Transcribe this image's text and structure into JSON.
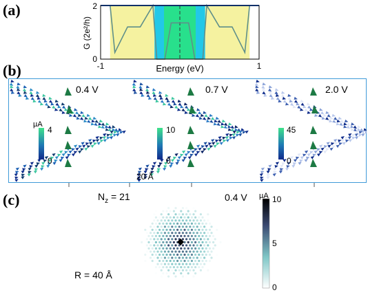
{
  "panel_labels": [
    "(a)",
    "(b)",
    "(c)"
  ],
  "colors": {
    "yellow_band": "#f5f2a0",
    "cyan_band": "#22c8e8",
    "green_band": "#28e08c",
    "curve": "#5f8f8a",
    "top_line": "#1f5fd0",
    "arrow_green": "#1d7a44",
    "panel_border": "#3f9ad8"
  },
  "chart_data": [
    {
      "type": "line",
      "panel": "(a)",
      "xlabel": "Energy (eV)",
      "ylabel": "G (2e²/h)",
      "xlim": [
        -1,
        1
      ],
      "ylim": [
        0,
        2
      ],
      "xtick_labels": [
        "-1",
        "1"
      ],
      "ytick_labels": [
        "0",
        "2"
      ],
      "bands": [
        {
          "from": -0.88,
          "to": -0.32,
          "color": "yellow"
        },
        {
          "from": -0.32,
          "to": -0.2,
          "color": "cyan"
        },
        {
          "from": -0.2,
          "to": 0.2,
          "color": "green"
        },
        {
          "from": 0.2,
          "to": 0.32,
          "color": "cyan"
        },
        {
          "from": 0.32,
          "to": 0.88,
          "color": "yellow"
        }
      ],
      "series": [
        {
          "x": [
            -1,
            -0.88,
            -0.82,
            -0.66,
            -0.6,
            -0.5,
            -0.34,
            -0.29,
            -0.19,
            -0.11,
            -0.08,
            0.08,
            0.11,
            0.19,
            0.29,
            0.34,
            0.5,
            0.6,
            0.66,
            0.82,
            0.88,
            1
          ],
          "y": [
            2,
            2,
            0.25,
            1.2,
            1.2,
            1.2,
            2,
            0,
            0,
            1.35,
            1.35,
            1.35,
            1.35,
            0,
            0,
            2,
            1.2,
            1.2,
            1.2,
            0.25,
            2,
            2
          ]
        }
      ],
      "dashed_x": 0,
      "top_line_y": 2
    },
    {
      "type": "scatter",
      "panel": "(b)",
      "maps": [
        {
          "voltage": "0.4 V",
          "cbar_unit": "µA",
          "cbar_max": "4",
          "cbar_min": "0",
          "scalebar": "20 Å"
        },
        {
          "voltage": "0.7 V",
          "cbar_max": "10",
          "cbar_min": "0"
        },
        {
          "voltage": "2.0 V",
          "cbar_max": "45",
          "cbar_min": "0"
        }
      ]
    },
    {
      "type": "heatmap",
      "panel": "(c)",
      "nz_label": "N",
      "nz_sub": "z",
      "nz_value": " = 21",
      "voltage": "0.4 V",
      "radius": "R = 40 Å",
      "cbar_unit": "µA",
      "cbar_ticks": [
        "10",
        "5",
        "0"
      ],
      "cbar_range": [
        0,
        10
      ]
    }
  ]
}
